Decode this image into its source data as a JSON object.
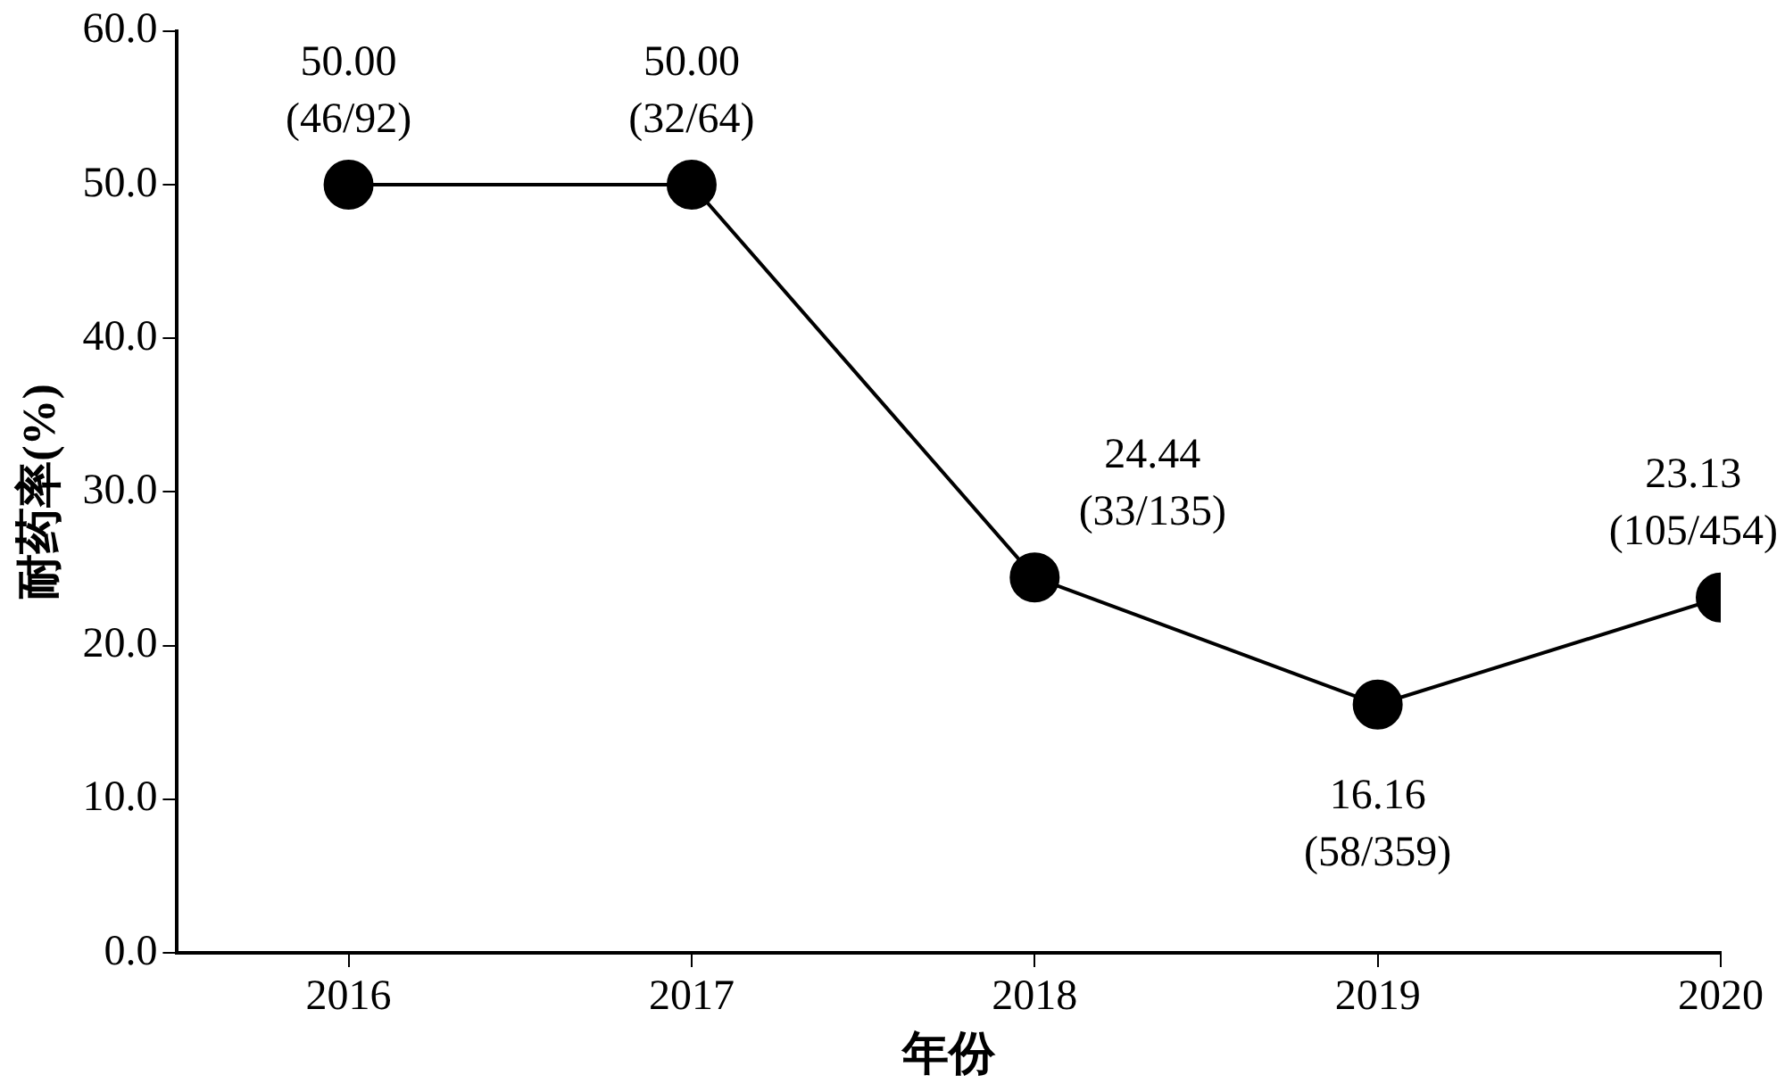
{
  "chart_data": {
    "type": "line",
    "xlabel": "年份",
    "ylabel": "耐药率(%)",
    "x": [
      2016,
      2017,
      2018,
      2019,
      2020
    ],
    "xlim": [
      2015.5,
      2020
    ],
    "xticks": [
      2016,
      2017,
      2018,
      2019,
      2020
    ],
    "ylim": [
      0,
      60
    ],
    "yticks": [
      {
        "value": 0,
        "label": "0.0"
      },
      {
        "value": 10,
        "label": "10.0"
      },
      {
        "value": 20,
        "label": "20.0"
      },
      {
        "value": 30,
        "label": "30.0"
      },
      {
        "value": 40,
        "label": "40.0"
      },
      {
        "value": 50,
        "label": "50.0"
      },
      {
        "value": 60,
        "label": "60.0"
      }
    ],
    "series": [
      {
        "color": "#000000",
        "values": [
          50.0,
          50.0,
          24.44,
          16.16,
          23.13
        ],
        "value_labels": [
          "50.00\n(46/92)",
          "50.00\n(32/64)",
          "24.44\n(33/135)",
          "16.16\n(58/359)",
          "23.13\n(105/454)"
        ]
      }
    ],
    "marker": "circle",
    "line_style": "solid",
    "grid": false,
    "legend": false
  }
}
